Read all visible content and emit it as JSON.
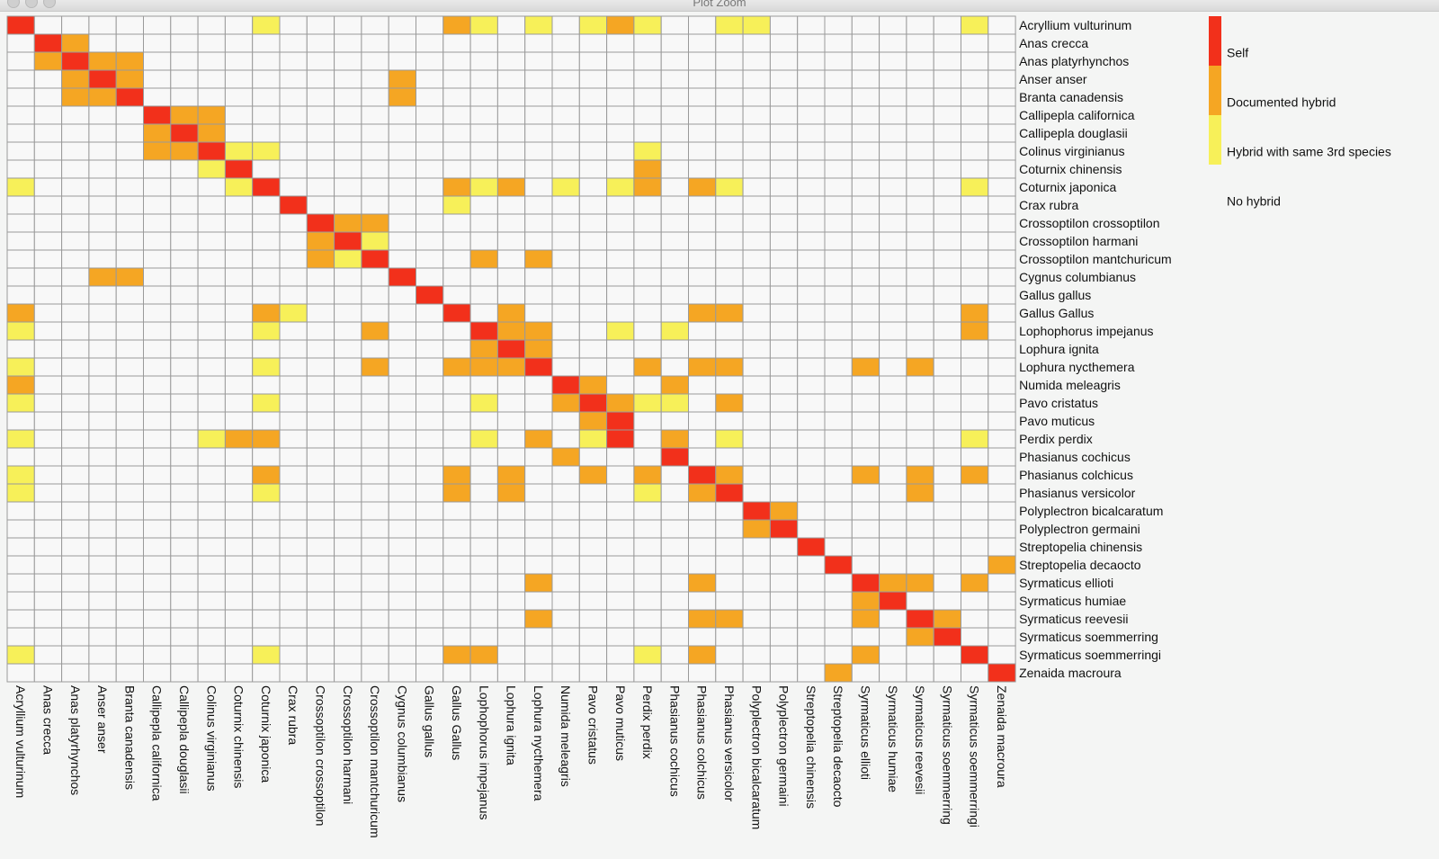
{
  "window": {
    "title": "Plot Zoom"
  },
  "colors": {
    "self": "#F2301B",
    "documented": "#F5A623",
    "third": "#F7F059",
    "none": "#F8F8F8",
    "grid": "#9A9A9A"
  },
  "legend": {
    "items": [
      {
        "label": "Self",
        "color": "#F2301B"
      },
      {
        "label": "Documented hybrid",
        "color": "#F5A623"
      },
      {
        "label": "Hybrid with same 3rd species",
        "color": "#F7F059"
      },
      {
        "label": "No hybrid",
        "color": "#F8F8F8"
      }
    ]
  },
  "chart_data": {
    "type": "heatmap",
    "species": [
      "Acryllium vulturinum",
      "Anas crecca",
      "Anas platyrhynchos",
      "Anser anser",
      "Branta canadensis",
      "Callipepla californica",
      "Callipepla douglasii",
      "Colinus virginianus",
      "Coturnix chinensis",
      "Coturnix japonica",
      "Crax rubra",
      "Crossoptilon crossoptilon",
      "Crossoptilon harmani",
      "Crossoptilon mantchuricum",
      "Cygnus columbianus",
      "Gallus gallus",
      "Gallus Gallus",
      "Lophophorus impejanus",
      "Lophura ignita",
      "Lophura nycthemera",
      "Numida meleagris",
      "Pavo cristatus",
      "Pavo muticus",
      "Perdix perdix",
      "Phasianus cochicus",
      "Phasianus colchicus",
      "Phasianus versicolor",
      "Polyplectron bicalcaratum",
      "Polyplectron germaini",
      "Streptopelia chinensis",
      "Streptopelia decaocto",
      "Syrmaticus ellioti",
      "Syrmaticus humiae",
      "Syrmaticus reevesii",
      "Syrmaticus soemmerring",
      "Syrmaticus soemmerringi",
      "Zenaida macroura"
    ],
    "legend_levels": {
      "3": "Self",
      "2": "Documented hybrid",
      "1": "Hybrid with same 3rd species",
      "0": "No hybrid"
    },
    "matrix": [
      "3000000001000000210101210011000000010",
      "0320000000000000000000000000000000000",
      "0232200000000000000000000000000000000",
      "0023200000000020000000000000000000000",
      "0022300000000020000000000000000000000",
      "0000032200000000000000000000000000000",
      "0000023200000000000000000000000000000",
      "0000022311000000000000010000000000000",
      "0000000130000000000000020000000000000",
      "1000000013000000212010120210000000010",
      "0000000000300000100000000000000000000",
      "0000000000032200000000000000000000000",
      "0000000000023100000000000000000000000",
      "0000000000021300020200000000000000000",
      "0002200000000030000000000000000000000",
      "0000000000000003000000000000000000000",
      "2000000002100000302000000220000000020",
      "1000000001000200032200101000000000020",
      "0000000000000000023200000000000000000",
      "1000000001000200222300020220000202000",
      "2000000000000000000032002000000000000",
      "1000000001000000010023211020000000000",
      "0000000000000000000002300000000000000",
      "1000000122000000010201302010000000010",
      "0000000000000000000020003000000000000",
      "1000000002000000202002020320000202020",
      "1000000001000000202000010230000002000",
      "0000000000000000000000000003200000000",
      "0000000000000000000000000002300000000",
      "0000000000000000000000000000030000000",
      "0000000000000000000000000000003000002",
      "0000000000000000000200000200000322020",
      "0000000000000000000000000000000230000",
      "0000000000000000000200000220000203200",
      "0000000000000000000000000000000002300",
      "1000000001000000220000010200000200030",
      "0000000000000000000000000000002000003"
    ]
  }
}
